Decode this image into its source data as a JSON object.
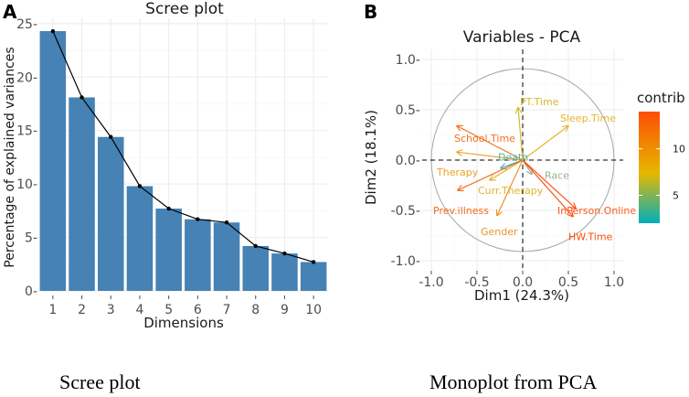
{
  "panel_labels": [
    "A",
    "B"
  ],
  "captions": {
    "left": "Scree plot",
    "right": "Monoplot from PCA"
  },
  "chart_data": [
    {
      "type": "bar",
      "title": "Scree plot",
      "xlabel": "Dimensions",
      "ylabel": "Percentage of explained variances",
      "categories": [
        "1",
        "2",
        "3",
        "4",
        "5",
        "6",
        "7",
        "8",
        "9",
        "10"
      ],
      "values": [
        24.3,
        18.1,
        14.4,
        9.8,
        7.7,
        6.7,
        6.4,
        4.2,
        3.5,
        2.7
      ],
      "ylim": [
        0,
        25.5
      ],
      "yticks": [
        0,
        5,
        10,
        15,
        20,
        25
      ],
      "ytick_labels": [
        "0-",
        "5-",
        "10-",
        "15-",
        "20-",
        "25-"
      ],
      "bar_color": "#4682b4",
      "line_overlay": true,
      "grid": true
    },
    {
      "type": "scatter",
      "subtype": "pca-variable-correlation-circle",
      "title": "Variables - PCA",
      "xlabel": "Dim1 (24.3%)",
      "ylabel": "Dim2 (18.1%)",
      "xlim": [
        -1.1,
        1.1
      ],
      "ylim": [
        -1.1,
        1.1
      ],
      "xticks": [
        -1.0,
        -0.5,
        0.0,
        0.5,
        1.0
      ],
      "xtick_labels": [
        "-1.0",
        "-0.5",
        "0.0",
        "0.5",
        "1.0"
      ],
      "yticks": [
        1.0,
        0.5,
        0.0,
        -0.5,
        -1.0
      ],
      "ytick_labels": [
        "1.0-",
        "0.5-",
        "0.0-",
        "-0.5-",
        "-1.0-"
      ],
      "legend": {
        "title": "contrib",
        "placement": "right",
        "tick_values": [
          10,
          5
        ],
        "tick_labels": [
          "10",
          "5"
        ],
        "range": [
          2,
          14
        ],
        "colors": [
          "#fc4e07",
          "#e7b800",
          "#00afbb"
        ]
      },
      "variables": [
        {
          "name": "PT.Time",
          "x": -0.05,
          "y": 0.52,
          "color": "#d9b62e",
          "label_x": -0.03,
          "label_y": 0.58
        },
        {
          "name": "Sleep.Time",
          "x": 0.5,
          "y": 0.34,
          "color": "#e3b432",
          "label_x": 0.41,
          "label_y": 0.42
        },
        {
          "name": "School.Time",
          "x": -0.72,
          "y": 0.34,
          "color": "#f2711d",
          "label_x": -0.75,
          "label_y": 0.22
        },
        {
          "name": "Therapy",
          "x": -0.72,
          "y": 0.08,
          "color": "#f0a224",
          "label_x": -0.94,
          "label_y": -0.12
        },
        {
          "name": "Death",
          "x": -0.24,
          "y": -0.08,
          "color": "#4ab6ad",
          "label_x": -0.27,
          "label_y": 0.03
        },
        {
          "name": "Curr.Therapy",
          "x": -0.36,
          "y": -0.2,
          "color": "#e5b22f",
          "label_x": -0.49,
          "label_y": -0.3
        },
        {
          "name": "Race",
          "x": 0.1,
          "y": -0.14,
          "color": "#98b489",
          "label_x": 0.24,
          "label_y": -0.15
        },
        {
          "name": "InPerson.Online",
          "x": 0.58,
          "y": -0.48,
          "color": "#f9591a",
          "label_x": 0.38,
          "label_y": -0.5
        },
        {
          "name": "HW.Time",
          "x": 0.55,
          "y": -0.56,
          "color": "#fb500d",
          "label_x": 0.5,
          "label_y": -0.76
        },
        {
          "name": "Prev.illness",
          "x": -0.71,
          "y": -0.3,
          "color": "#f36a1c",
          "label_x": -0.98,
          "label_y": -0.5
        },
        {
          "name": "Gender",
          "x": -0.28,
          "y": -0.55,
          "color": "#ec9326",
          "label_x": -0.46,
          "label_y": -0.71
        }
      ]
    }
  ]
}
